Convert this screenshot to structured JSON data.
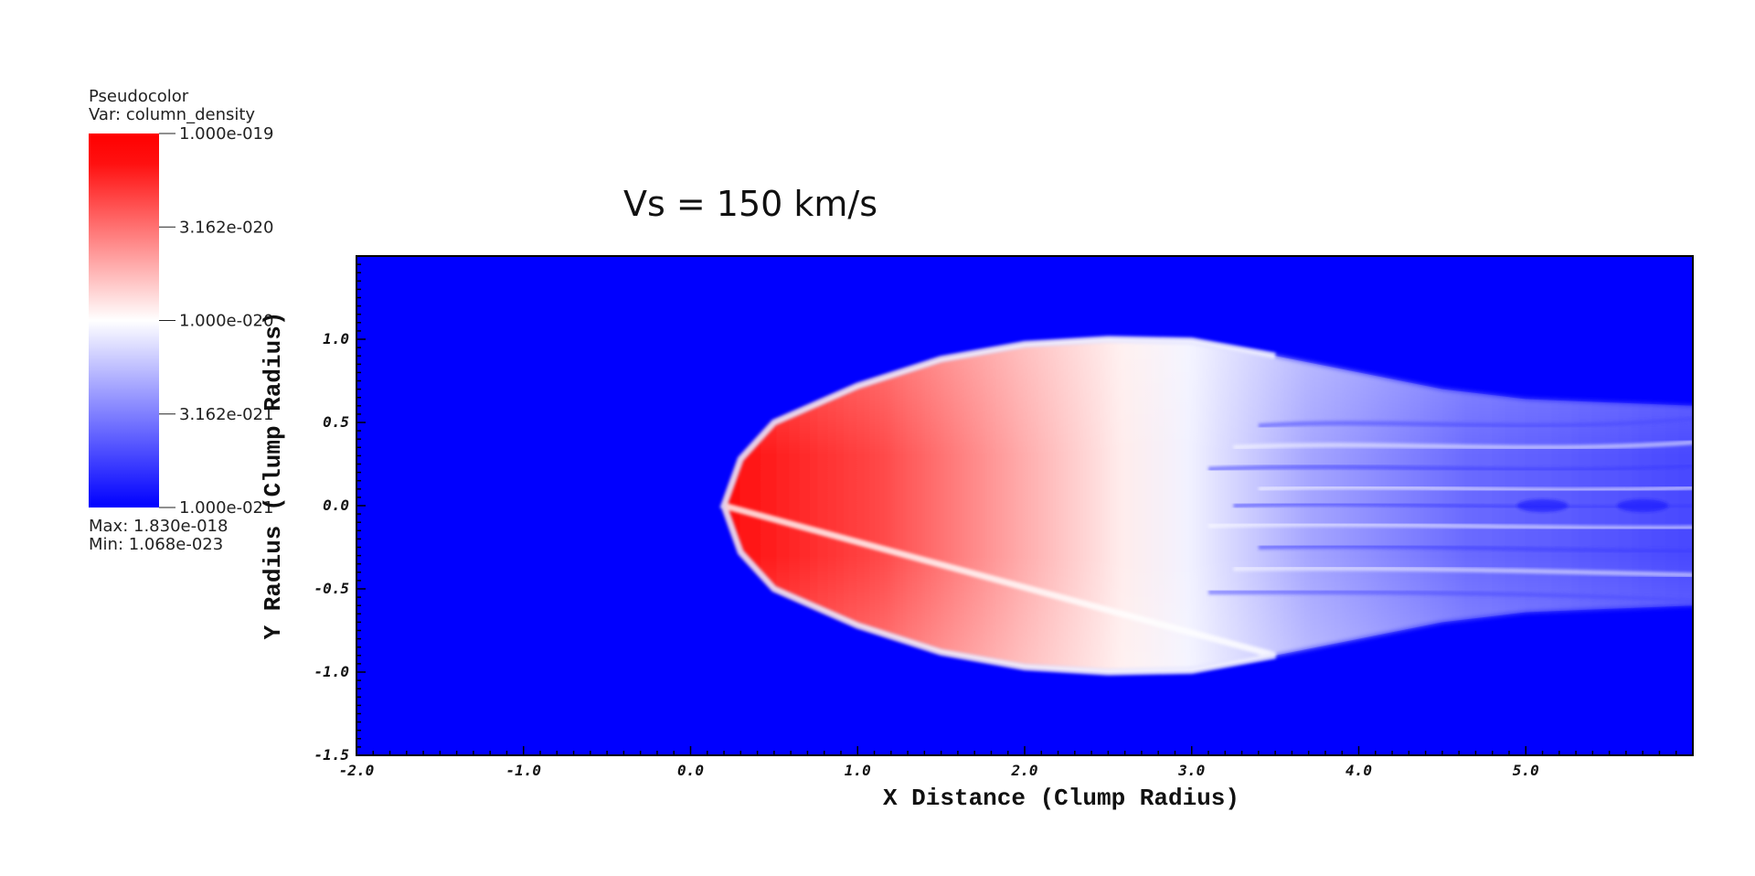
{
  "title": "Vs = 150 km/s",
  "legend": {
    "line1": "Pseudocolor",
    "line2": "Var: column_density",
    "ticks": [
      "1.000e-019",
      "3.162e-020",
      "1.000e-020",
      "3.162e-021",
      "1.000e-021"
    ],
    "max_text": "Max:  1.830e-018",
    "min_text": "Min:  1.068e-023",
    "colors": {
      "high": "#ff0000",
      "mid": "#ffffff",
      "low": "#0000ff"
    }
  },
  "chart_data": {
    "type": "heatmap",
    "title": "Vs = 150 km/s",
    "variable": "column_density",
    "xlabel": "X Distance (Clump Radius)",
    "ylabel": "Y Radius (Clump Radius)",
    "xlim": [
      -2.0,
      6.0
    ],
    "ylim": [
      -1.5,
      1.5
    ],
    "x_ticks": [
      "-2.0",
      "-1.0",
      "0.0",
      "1.0",
      "2.0",
      "3.0",
      "4.0",
      "5.0"
    ],
    "y_ticks": [
      "-1.5",
      "-1.0",
      "-0.5",
      "0.0",
      "0.5",
      "1.0"
    ],
    "colorbar": {
      "scale": "log",
      "min": 1e-21,
      "max": 1e-19
    },
    "data_range": {
      "max": 1.83e-18,
      "min": 1.068e-23
    },
    "background_color": "#0000ff",
    "feature": {
      "head_x": 0.2,
      "outline_top": [
        [
          0.2,
          0.0
        ],
        [
          0.3,
          0.28
        ],
        [
          0.5,
          0.5
        ],
        [
          1.0,
          0.72
        ],
        [
          1.5,
          0.88
        ],
        [
          2.0,
          0.97
        ],
        [
          2.5,
          1.0
        ],
        [
          3.0,
          0.99
        ],
        [
          3.5,
          0.9
        ],
        [
          4.0,
          0.8
        ],
        [
          4.5,
          0.7
        ],
        [
          5.0,
          0.64
        ],
        [
          5.5,
          0.62
        ],
        [
          6.0,
          0.6
        ]
      ],
      "red_to_white_x": 3.0,
      "white_to_blue_x": 3.6
    }
  }
}
